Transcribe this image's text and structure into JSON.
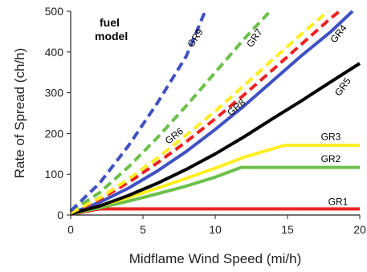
{
  "chart_data": {
    "type": "line",
    "title": "",
    "legend_title": "fuel model",
    "xlabel": "Midflame Wind Speed (mi/h)",
    "ylabel": "Rate of Spread (ch/h)",
    "xlim": [
      0,
      20
    ],
    "ylim": [
      0,
      500
    ],
    "xticks": [
      0,
      5,
      10,
      15,
      20
    ],
    "yticks": [
      0,
      100,
      200,
      300,
      400,
      500
    ],
    "grid": false,
    "series": [
      {
        "name": "GR1",
        "color": "#ee2222",
        "style": "solid",
        "points": [
          [
            0,
            3
          ],
          [
            0.5,
            5
          ],
          [
            1,
            8
          ],
          [
            1.5,
            12
          ],
          [
            2,
            15
          ],
          [
            20,
            15
          ]
        ]
      },
      {
        "name": "GR2",
        "color": "#6cc04a",
        "style": "solid",
        "points": [
          [
            0,
            2
          ],
          [
            2,
            18
          ],
          [
            4,
            34
          ],
          [
            6,
            52
          ],
          [
            8,
            71
          ],
          [
            10,
            93
          ],
          [
            11.8,
            117
          ],
          [
            20,
            117
          ]
        ]
      },
      {
        "name": "GR3",
        "color": "#ffee22",
        "style": "solid",
        "points": [
          [
            0,
            2
          ],
          [
            2,
            22
          ],
          [
            4,
            43
          ],
          [
            6,
            66
          ],
          [
            8,
            90
          ],
          [
            10,
            115
          ],
          [
            12,
            142
          ],
          [
            14.8,
            171
          ],
          [
            20,
            171
          ]
        ]
      },
      {
        "name": "GR4",
        "color": "#3f51c2",
        "style": "solid",
        "points": [
          [
            0,
            4
          ],
          [
            2,
            31
          ],
          [
            4,
            66
          ],
          [
            6,
            108
          ],
          [
            8,
            156
          ],
          [
            10,
            210
          ],
          [
            12,
            268
          ],
          [
            14,
            330
          ],
          [
            16,
            392
          ],
          [
            18,
            450
          ],
          [
            19.5,
            500
          ]
        ]
      },
      {
        "name": "GR5",
        "color": "#000000",
        "style": "solid",
        "points": [
          [
            0,
            3
          ],
          [
            2,
            22
          ],
          [
            4,
            48
          ],
          [
            6,
            78
          ],
          [
            8,
            112
          ],
          [
            10,
            150
          ],
          [
            12,
            192
          ],
          [
            14,
            237
          ],
          [
            16,
            281
          ],
          [
            18,
            327
          ],
          [
            20,
            372
          ]
        ]
      },
      {
        "name": "GR6",
        "color": "#ee2222",
        "style": "dashed",
        "points": [
          [
            0,
            5
          ],
          [
            2,
            38
          ],
          [
            4,
            80
          ],
          [
            6,
            128
          ],
          [
            8,
            180
          ],
          [
            10,
            236
          ],
          [
            12,
            295
          ],
          [
            14,
            357
          ],
          [
            16,
            420
          ],
          [
            18,
            483
          ],
          [
            18.6,
            500
          ]
        ]
      },
      {
        "name": "GR7",
        "color": "#6cc04a",
        "style": "dashed",
        "points": [
          [
            0,
            8
          ],
          [
            2,
            55
          ],
          [
            4,
            118
          ],
          [
            6,
            190
          ],
          [
            8,
            268
          ],
          [
            10,
            350
          ],
          [
            12,
            432
          ],
          [
            13.8,
            500
          ]
        ]
      },
      {
        "name": "GR8",
        "color": "#ffee22",
        "style": "dashed",
        "points": [
          [
            0,
            5
          ],
          [
            2,
            42
          ],
          [
            4,
            88
          ],
          [
            6,
            140
          ],
          [
            8,
            196
          ],
          [
            10,
            255
          ],
          [
            12,
            318
          ],
          [
            14,
            382
          ],
          [
            16,
            445
          ],
          [
            17.8,
            500
          ]
        ]
      },
      {
        "name": "GR9",
        "color": "#3f51c2",
        "style": "dashed",
        "points": [
          [
            0,
            10
          ],
          [
            2,
            78
          ],
          [
            4,
            170
          ],
          [
            6,
            275
          ],
          [
            8,
            390
          ],
          [
            9.3,
            500
          ]
        ]
      }
    ],
    "series_labels": [
      {
        "name": "GR1",
        "x": 18.5,
        "y": 25
      },
      {
        "name": "GR2",
        "x": 18.0,
        "y": 130
      },
      {
        "name": "GR3",
        "x": 18.0,
        "y": 184
      },
      {
        "name": "GR4",
        "x": 18.7,
        "y": 440
      },
      {
        "name": "GR5",
        "x": 19.0,
        "y": 310
      },
      {
        "name": "GR6",
        "x": 7.3,
        "y": 188
      },
      {
        "name": "GR7",
        "x": 12.9,
        "y": 430
      },
      {
        "name": "GR8",
        "x": 11.6,
        "y": 258
      },
      {
        "name": "GR9",
        "x": 8.8,
        "y": 430
      }
    ]
  }
}
